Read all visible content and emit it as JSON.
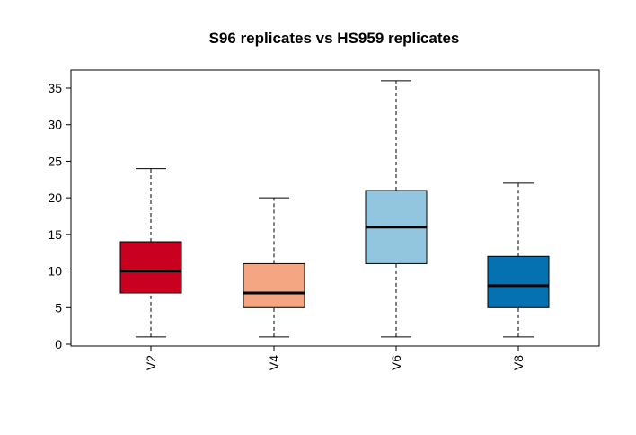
{
  "chart_data": {
    "type": "box",
    "title": "S96 replicates vs HS959 replicates",
    "xlabel": "",
    "ylabel": "",
    "categories": [
      "V2",
      "V4",
      "V6",
      "V8"
    ],
    "ylim": [
      0,
      37
    ],
    "yticks": [
      0,
      5,
      10,
      15,
      20,
      25,
      30,
      35
    ],
    "boxes": [
      {
        "category": "V2",
        "min": 1,
        "q1": 7,
        "median": 10,
        "q3": 14,
        "max": 24,
        "color": "#ca0020"
      },
      {
        "category": "V4",
        "min": 1,
        "q1": 5,
        "median": 7,
        "q3": 11,
        "max": 20,
        "color": "#f4a582"
      },
      {
        "category": "V6",
        "min": 1,
        "q1": 11,
        "median": 16,
        "q3": 21,
        "max": 36,
        "color": "#92c5de"
      },
      {
        "category": "V8",
        "min": 1,
        "q1": 5,
        "median": 8,
        "q3": 12,
        "max": 22,
        "color": "#0571b0"
      }
    ],
    "grid": false,
    "legend": "none"
  }
}
